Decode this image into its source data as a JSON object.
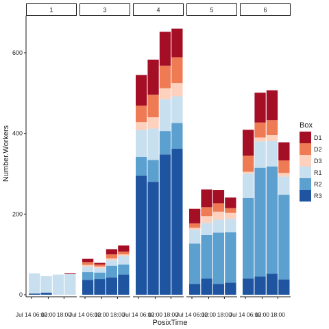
{
  "chart_data": {
    "type": "bar",
    "stacked": true,
    "faceted": true,
    "xlabel": "PosixTime",
    "ylabel": "Number.Workers",
    "ylim": [
      0,
      700
    ],
    "yticks": [
      0,
      200,
      400,
      600
    ],
    "grid": false,
    "legend_title": "Box",
    "legend_position": "right",
    "x_tick_labels": [
      "Jul 14 06:00",
      "12:00",
      "18:00",
      "Jul 14 06:00",
      "12:00",
      "18:00",
      "Jul 14 06:00",
      "12:00",
      "18:00",
      "Jul 14 06:00",
      "12:00",
      "18:00",
      "Jul 14 06:00",
      "12:00",
      "18:00"
    ],
    "series": [
      {
        "name": "D1",
        "color": "#a50f26"
      },
      {
        "name": "D2",
        "color": "#ef7b54"
      },
      {
        "name": "D3",
        "color": "#fdd1bd"
      },
      {
        "name": "R1",
        "color": "#c8dff0"
      },
      {
        "name": "R2",
        "color": "#5ba0cf"
      },
      {
        "name": "R3",
        "color": "#1f55a0"
      }
    ],
    "facets": [
      {
        "label": "1",
        "bars": [
          {
            "R3": 3,
            "R2": 0,
            "R1": 50,
            "D3": 0,
            "D2": 0,
            "D1": 0
          },
          {
            "R3": 5,
            "R2": 0,
            "R1": 41,
            "D3": 0,
            "D2": 0,
            "D1": 0
          },
          {
            "R3": 0,
            "R2": 0,
            "R1": 50,
            "D3": 0,
            "D2": 0,
            "D1": 0
          },
          {
            "R3": 0,
            "R2": 0,
            "R1": 51,
            "D3": 0,
            "D2": 0,
            "D1": 2
          }
        ]
      },
      {
        "label": "3",
        "bars": [
          {
            "R3": 37,
            "R2": 19,
            "R1": 14,
            "D3": 4,
            "D2": 7,
            "D1": 8
          },
          {
            "R3": 39,
            "R2": 16,
            "R1": 11,
            "D3": 4,
            "D2": 5,
            "D1": 4
          },
          {
            "R3": 43,
            "R2": 29,
            "R1": 14,
            "D3": 4,
            "D2": 10,
            "D1": 13
          },
          {
            "R3": 50,
            "R2": 25,
            "R1": 21,
            "D3": 4,
            "D2": 7,
            "D1": 15
          }
        ]
      },
      {
        "label": "4",
        "bars": [
          {
            "R3": 295,
            "R2": 47,
            "R1": 66,
            "D3": 20,
            "D2": 41,
            "D1": 76
          },
          {
            "R3": 280,
            "R2": 54,
            "R1": 78,
            "D3": 28,
            "D2": 56,
            "D1": 87
          },
          {
            "R3": 348,
            "R2": 58,
            "R1": 79,
            "D3": 27,
            "D2": 56,
            "D1": 84
          },
          {
            "R3": 362,
            "R2": 64,
            "R1": 66,
            "D3": 33,
            "D2": 64,
            "D1": 71
          }
        ]
      },
      {
        "label": "5",
        "bars": [
          {
            "R3": 27,
            "R2": 100,
            "R1": 34,
            "D3": 5,
            "D2": 11,
            "D1": 36
          },
          {
            "R3": 40,
            "R2": 108,
            "R1": 30,
            "D3": 17,
            "D2": 22,
            "D1": 44
          },
          {
            "R3": 27,
            "R2": 127,
            "R1": 32,
            "D3": 20,
            "D2": 21,
            "D1": 33
          },
          {
            "R3": 30,
            "R2": 125,
            "R1": 33,
            "D3": 15,
            "D2": 12,
            "D1": 26
          }
        ]
      },
      {
        "label": "6",
        "bars": [
          {
            "R3": 40,
            "R2": 200,
            "R1": 60,
            "D3": 5,
            "D2": 40,
            "D1": 64
          },
          {
            "R3": 45,
            "R2": 270,
            "R1": 65,
            "D3": 10,
            "D2": 37,
            "D1": 74
          },
          {
            "R3": 52,
            "R2": 266,
            "R1": 63,
            "D3": 15,
            "D2": 37,
            "D1": 74
          },
          {
            "R3": 38,
            "R2": 210,
            "R1": 45,
            "D3": 9,
            "D2": 31,
            "D1": 45
          }
        ]
      }
    ]
  }
}
